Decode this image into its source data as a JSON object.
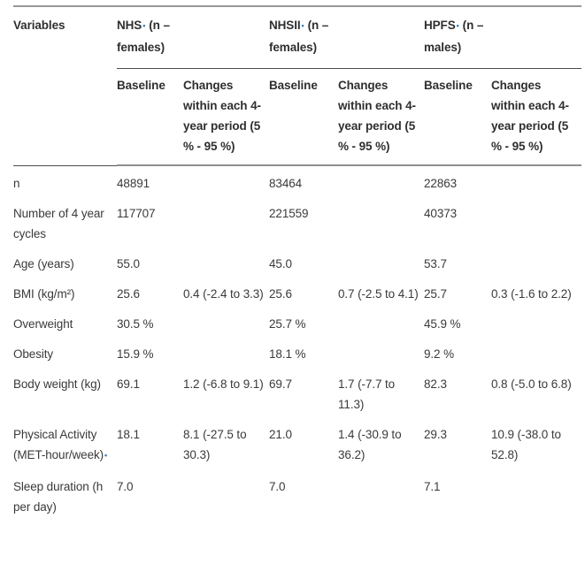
{
  "colors": {
    "text": "#3a3a3a",
    "header_text": "#2f2f2f",
    "footnote_marker_blue": "#2b7cc0",
    "rule_gray": "#8f8f8f",
    "rule_dark": "#4d4d4d"
  },
  "table": {
    "corner_header": "Variables",
    "groups": [
      {
        "name": "NHS",
        "marker": "•",
        "suffix": "(n – females)"
      },
      {
        "name": "NHSII",
        "marker": "•",
        "suffix": "(n – females)"
      },
      {
        "name": "HPFS",
        "marker": "•",
        "suffix": "(n – males)"
      }
    ],
    "subheaders": {
      "baseline": "Baseline",
      "changes": "Changes within each 4-year period (5 % - 95 %)"
    },
    "rows": [
      {
        "label": "n",
        "cells": [
          "48891",
          "",
          "83464",
          "",
          "22863",
          ""
        ]
      },
      {
        "label": "Number of 4 year cycles",
        "cells": [
          "117707",
          "",
          "221559",
          "",
          "40373",
          ""
        ]
      },
      {
        "label": "Age (years)",
        "cells": [
          "55.0",
          "",
          "45.0",
          "",
          "53.7",
          ""
        ]
      },
      {
        "label": "BMI (kg/m²)",
        "cells": [
          "25.6",
          "0.4 (-2.4 to 3.3)",
          "25.6",
          "0.7 (-2.5 to 4.1)",
          "25.7",
          "0.3 (-1.6 to 2.2)"
        ]
      },
      {
        "label": "Overweight",
        "cells": [
          "30.5 %",
          "",
          "25.7 %",
          "",
          "45.9 %",
          ""
        ]
      },
      {
        "label": "Obesity",
        "cells": [
          "15.9 %",
          "",
          "18.1 %",
          "",
          "9.2 %",
          ""
        ]
      },
      {
        "label": "Body weight (kg)",
        "cells": [
          "69.1",
          "1.2 (-6.8 to 9.1)",
          "69.7",
          "1.7 (-7.7 to 11.3)",
          "82.3",
          "0.8 (-5.0 to 6.8)"
        ]
      },
      {
        "label": "Physical Activity (MET-hour/week)",
        "label_marker": "•",
        "cells": [
          "18.1",
          "8.1 (-27.5 to 30.3)",
          "21.0",
          "1.4 (-30.9 to 36.2)",
          "29.3",
          "10.9 (-38.0 to 52.8)"
        ]
      },
      {
        "label": "Sleep duration (h per day)",
        "cells": [
          "7.0",
          "",
          "7.0",
          "",
          "7.1",
          ""
        ]
      }
    ]
  }
}
